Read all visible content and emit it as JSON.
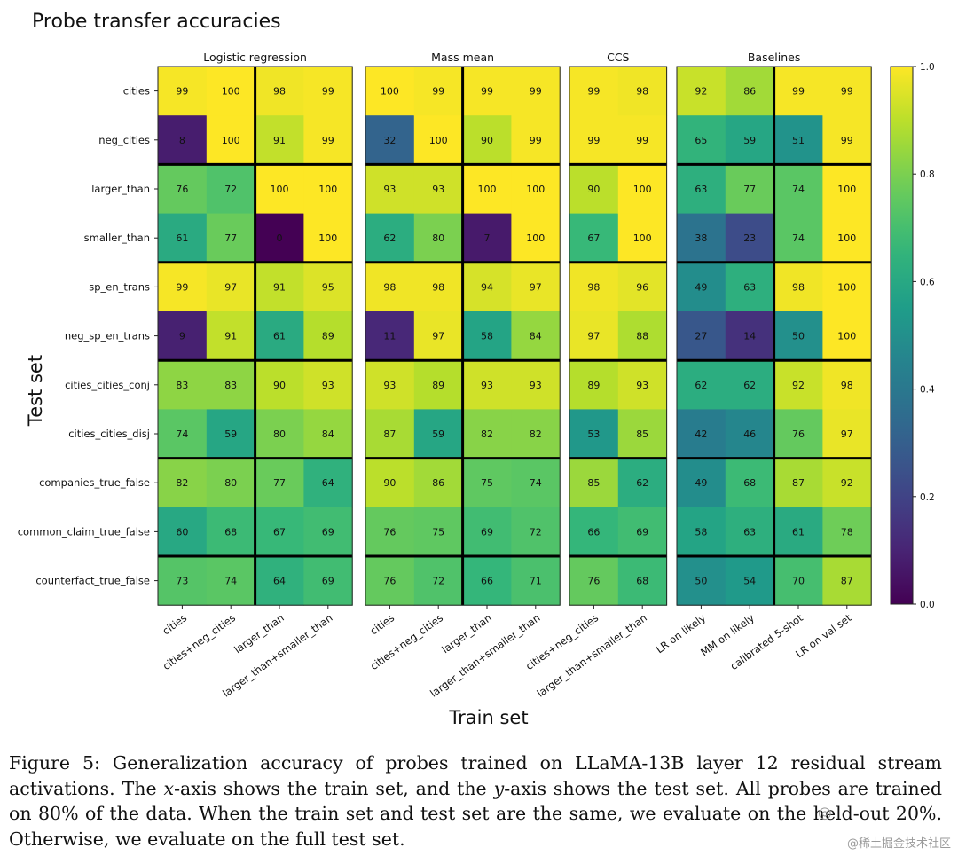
{
  "chart_data": {
    "type": "heatmap",
    "title": "Probe transfer accuracies",
    "xlabel": "Train set",
    "ylabel": "Test set",
    "groups": [
      {
        "name": "Logistic regression",
        "columns": [
          "cities",
          "cities+neg_cities",
          "larger_than",
          "larger_than+smaller_than"
        ]
      },
      {
        "name": "Mass mean",
        "columns": [
          "cities",
          "cities+neg_cities",
          "larger_than",
          "larger_than+smaller_than"
        ]
      },
      {
        "name": "CCS",
        "columns": [
          "cities+neg_cities",
          "larger_than+smaller_than"
        ]
      },
      {
        "name": "Baselines",
        "columns": [
          "LR on likely",
          "MM on likely",
          "calibrated 5-shot",
          "LR on val set"
        ]
      }
    ],
    "rows": [
      "cities",
      "neg_cities",
      "larger_than",
      "smaller_than",
      "sp_en_trans",
      "neg_sp_en_trans",
      "cities_cities_conj",
      "cities_cities_disj",
      "companies_true_false",
      "common_claim_true_false",
      "counterfact_true_false"
    ],
    "values": [
      [
        99,
        100,
        98,
        99,
        100,
        99,
        99,
        99,
        99,
        98,
        92,
        86,
        99,
        99
      ],
      [
        8,
        100,
        91,
        99,
        32,
        100,
        90,
        99,
        99,
        99,
        65,
        59,
        51,
        99
      ],
      [
        76,
        72,
        100,
        100,
        93,
        93,
        100,
        100,
        90,
        100,
        63,
        77,
        74,
        100
      ],
      [
        61,
        77,
        0,
        100,
        62,
        80,
        7,
        100,
        67,
        100,
        38,
        23,
        74,
        100
      ],
      [
        99,
        97,
        91,
        95,
        98,
        98,
        94,
        97,
        98,
        96,
        49,
        63,
        98,
        100
      ],
      [
        9,
        91,
        61,
        89,
        11,
        97,
        58,
        84,
        97,
        88,
        27,
        14,
        50,
        100
      ],
      [
        83,
        83,
        90,
        93,
        93,
        89,
        93,
        93,
        89,
        93,
        62,
        62,
        92,
        98
      ],
      [
        74,
        59,
        80,
        84,
        87,
        59,
        82,
        82,
        53,
        85,
        42,
        46,
        76,
        97
      ],
      [
        82,
        80,
        77,
        64,
        90,
        86,
        75,
        74,
        85,
        62,
        49,
        68,
        87,
        92
      ],
      [
        60,
        68,
        67,
        69,
        76,
        75,
        69,
        72,
        66,
        69,
        58,
        63,
        61,
        78
      ],
      [
        73,
        74,
        64,
        69,
        76,
        72,
        66,
        71,
        76,
        68,
        50,
        54,
        70,
        87
      ]
    ],
    "colorbar": {
      "range": [
        0.0,
        1.0
      ],
      "ticks": [
        "0.0",
        "0.2",
        "0.4",
        "0.6",
        "0.8",
        "1.0"
      ],
      "colormap": "viridis"
    }
  },
  "caption": {
    "label": "Figure 5:",
    "text_1": " Generalization accuracy of probes trained on LLaMA-13B layer 12 residual stream activations. The ",
    "x_var": "x",
    "text_2": "-axis shows the train set, and the ",
    "y_var": "y",
    "text_3": "-axis shows the test set. All probes are trained on 80% of the data. When the train set and test set are the same, we evaluate on the held-out 20%. Otherwise, we evaluate on the full test set."
  },
  "watermark": "@稀土掘金技术社区"
}
